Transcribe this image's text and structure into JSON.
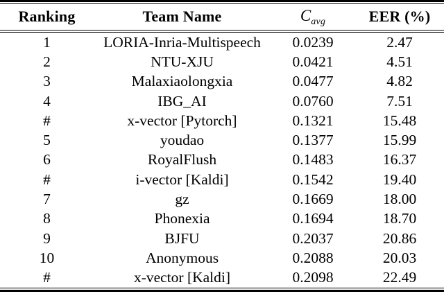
{
  "table": {
    "headers": {
      "ranking": "Ranking",
      "team": "Team Name",
      "cavg_symbol": "C",
      "cavg_subscript": "avg",
      "eer": "EER (%)"
    },
    "rows": [
      {
        "ranking": "1",
        "team": "LORIA-Inria-Multispeech",
        "cavg": "0.0239",
        "eer": "2.47"
      },
      {
        "ranking": "2",
        "team": "NTU-XJU",
        "cavg": "0.0421",
        "eer": "4.51"
      },
      {
        "ranking": "3",
        "team": "Malaxiaolongxia",
        "cavg": "0.0477",
        "eer": "4.82"
      },
      {
        "ranking": "4",
        "team": "IBG_AI",
        "cavg": "0.0760",
        "eer": "7.51"
      },
      {
        "ranking": "#",
        "team": "x-vector [Pytorch]",
        "cavg": "0.1321",
        "eer": "15.48"
      },
      {
        "ranking": "5",
        "team": "youdao",
        "cavg": "0.1377",
        "eer": "15.99"
      },
      {
        "ranking": "6",
        "team": "RoyalFlush",
        "cavg": "0.1483",
        "eer": "16.37"
      },
      {
        "ranking": "#",
        "team": "i-vector [Kaldi]",
        "cavg": "0.1542",
        "eer": "19.40"
      },
      {
        "ranking": "7",
        "team": "gz",
        "cavg": "0.1669",
        "eer": "18.00"
      },
      {
        "ranking": "8",
        "team": "Phonexia",
        "cavg": "0.1694",
        "eer": "18.70"
      },
      {
        "ranking": "9",
        "team": "BJFU",
        "cavg": "0.2037",
        "eer": "20.86"
      },
      {
        "ranking": "10",
        "team": "Anonymous",
        "cavg": "0.2088",
        "eer": "20.03"
      },
      {
        "ranking": "#",
        "team": "x-vector [Kaldi]",
        "cavg": "0.2098",
        "eer": "22.49"
      }
    ],
    "colors": {
      "text": "#000000",
      "background": "#ffffff",
      "rule": "#000000"
    }
  },
  "chart_data": {
    "type": "table",
    "title": "",
    "columns": [
      "Ranking",
      "C_avg",
      "EER (%)"
    ],
    "categories": [
      "LORIA-Inria-Multispeech",
      "NTU-XJU",
      "Malaxiaolongxia",
      "IBG_AI",
      "x-vector [Pytorch]",
      "youdao",
      "RoyalFlush",
      "i-vector [Kaldi]",
      "gz",
      "Phonexia",
      "BJFU",
      "Anonymous",
      "x-vector [Kaldi]"
    ],
    "series": [
      {
        "name": "Ranking",
        "values": [
          "1",
          "2",
          "3",
          "4",
          "#",
          "5",
          "6",
          "#",
          "7",
          "8",
          "9",
          "10",
          "#"
        ]
      },
      {
        "name": "C_avg",
        "values": [
          0.0239,
          0.0421,
          0.0477,
          0.076,
          0.1321,
          0.1377,
          0.1483,
          0.1542,
          0.1669,
          0.1694,
          0.2037,
          0.2088,
          0.2098
        ]
      },
      {
        "name": "EER (%)",
        "values": [
          2.47,
          4.51,
          4.82,
          7.51,
          15.48,
          15.99,
          16.37,
          19.4,
          18.0,
          18.7,
          20.86,
          20.03,
          22.49
        ]
      }
    ]
  }
}
